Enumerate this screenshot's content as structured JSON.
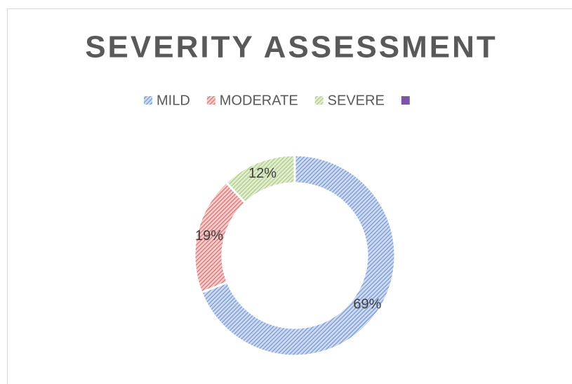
{
  "chart_data": {
    "type": "pie",
    "title": "SEVERITY ASSESSMENT",
    "categories": [
      "MILD",
      "MODERATE",
      "SEVERE",
      null
    ],
    "values": [
      69,
      19,
      12,
      0
    ],
    "value_labels": [
      "69%",
      "19%",
      "12%",
      null
    ],
    "colors": [
      "#6f93d0",
      "#d86b6b",
      "#a9c97a",
      "#7a57a6"
    ],
    "legend": "top"
  }
}
